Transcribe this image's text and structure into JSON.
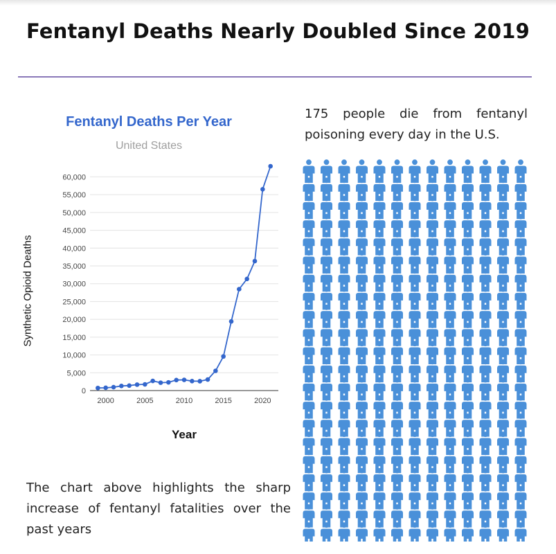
{
  "headline": "Fentanyl Deaths Nearly Doubled Since 2019",
  "stat_text": "175 people die from fentanyl poisoning every day in the U.S.",
  "caption": "The chart above highlights the sharp increase of fentanyl fatalities over the past years",
  "colors": {
    "line": "#3366cc",
    "person_icon": "#4a90d9",
    "divider": "#8a78b8",
    "subtitle": "#9e9e9e"
  },
  "icon_grid": {
    "icon": "person-icon",
    "rows": 21,
    "cols": 13
  },
  "chart_data": {
    "type": "line",
    "title": "Fentanyl Deaths Per Year",
    "subtitle": "United States",
    "xlabel": "Year",
    "ylabel": "Synthetic Opioid Deaths",
    "x": [
      1999,
      2000,
      2001,
      2002,
      2003,
      2004,
      2005,
      2006,
      2007,
      2008,
      2009,
      2010,
      2011,
      2012,
      2013,
      2014,
      2015,
      2016,
      2017,
      2018,
      2019,
      2020,
      2021
    ],
    "series": [
      {
        "values": [
          730,
          782,
          957,
          1295,
          1400,
          1664,
          1742,
          2707,
          2213,
          2306,
          2946,
          3007,
          2666,
          2628,
          3105,
          5544,
          9580,
          19413,
          28466,
          31335,
          36359,
          56516,
          63000
        ]
      }
    ],
    "xlim": [
      1998,
      2022
    ],
    "ylim": [
      0,
      63000
    ],
    "x_ticks": [
      "2000",
      "2005",
      "2010",
      "2015",
      "2020"
    ],
    "y_ticks": [
      "0",
      "5,000",
      "10,000",
      "15,000",
      "20,000",
      "25,000",
      "30,000",
      "35,000",
      "40,000",
      "45,000",
      "50,000",
      "55,000",
      "60,000"
    ],
    "grid": true,
    "legend": "none"
  }
}
